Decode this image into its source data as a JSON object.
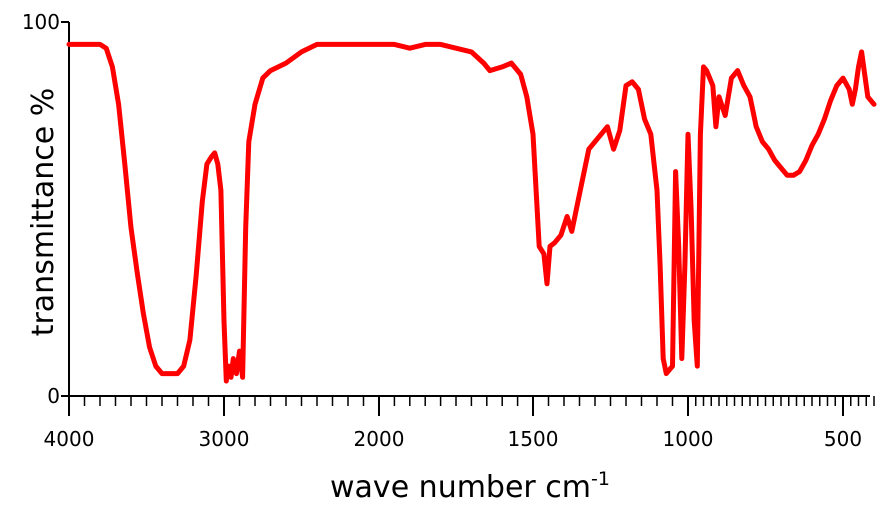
{
  "chart_data": {
    "type": "line",
    "title": "",
    "xlabel": "wave number cm",
    "xlabel_sup": "-1",
    "ylabel": "transmittance %",
    "xlim": [
      4000,
      400
    ],
    "ylim": [
      0,
      100
    ],
    "x_reversed": true,
    "grid": false,
    "legend": "none",
    "x_ticks": [
      4000,
      3000,
      2000,
      1500,
      1000,
      500
    ],
    "x_tick_labels": [
      "4000",
      "3000",
      "2000",
      "1500",
      "1000",
      "500"
    ],
    "y_ticks": [
      0,
      100
    ],
    "y_tick_labels": [
      "0",
      "100"
    ],
    "series": [
      {
        "color": "#ff0000",
        "points": [
          [
            4000,
            94
          ],
          [
            3900,
            94
          ],
          [
            3800,
            94
          ],
          [
            3760,
            93
          ],
          [
            3720,
            88
          ],
          [
            3680,
            78
          ],
          [
            3640,
            62
          ],
          [
            3600,
            45
          ],
          [
            3560,
            33
          ],
          [
            3520,
            22
          ],
          [
            3480,
            13
          ],
          [
            3440,
            8
          ],
          [
            3400,
            6
          ],
          [
            3350,
            6
          ],
          [
            3300,
            6
          ],
          [
            3260,
            8
          ],
          [
            3220,
            15
          ],
          [
            3180,
            32
          ],
          [
            3140,
            52
          ],
          [
            3110,
            62
          ],
          [
            3080,
            64
          ],
          [
            3060,
            65
          ],
          [
            3040,
            62
          ],
          [
            3020,
            55
          ],
          [
            3000,
            20
          ],
          [
            2985,
            4
          ],
          [
            2970,
            8
          ],
          [
            2955,
            5
          ],
          [
            2940,
            10
          ],
          [
            2920,
            6
          ],
          [
            2900,
            12
          ],
          [
            2880,
            5
          ],
          [
            2860,
            45
          ],
          [
            2840,
            68
          ],
          [
            2800,
            78
          ],
          [
            2750,
            85
          ],
          [
            2700,
            87
          ],
          [
            2600,
            89
          ],
          [
            2500,
            92
          ],
          [
            2400,
            94
          ],
          [
            2300,
            94
          ],
          [
            2200,
            94
          ],
          [
            2100,
            94
          ],
          [
            2000,
            94
          ],
          [
            1950,
            94
          ],
          [
            1900,
            93
          ],
          [
            1850,
            94
          ],
          [
            1800,
            94
          ],
          [
            1750,
            93
          ],
          [
            1700,
            92
          ],
          [
            1660,
            89
          ],
          [
            1640,
            87
          ],
          [
            1600,
            88
          ],
          [
            1570,
            89
          ],
          [
            1540,
            86
          ],
          [
            1520,
            80
          ],
          [
            1500,
            70
          ],
          [
            1480,
            40
          ],
          [
            1465,
            38
          ],
          [
            1455,
            30
          ],
          [
            1445,
            40
          ],
          [
            1430,
            41
          ],
          [
            1410,
            43
          ],
          [
            1390,
            48
          ],
          [
            1375,
            44
          ],
          [
            1360,
            50
          ],
          [
            1340,
            58
          ],
          [
            1320,
            66
          ],
          [
            1300,
            68
          ],
          [
            1280,
            70
          ],
          [
            1260,
            72
          ],
          [
            1240,
            66
          ],
          [
            1220,
            71
          ],
          [
            1200,
            83
          ],
          [
            1180,
            84
          ],
          [
            1160,
            82
          ],
          [
            1140,
            74
          ],
          [
            1120,
            70
          ],
          [
            1100,
            55
          ],
          [
            1090,
            35
          ],
          [
            1080,
            10
          ],
          [
            1070,
            6
          ],
          [
            1060,
            7
          ],
          [
            1050,
            8
          ],
          [
            1040,
            60
          ],
          [
            1030,
            40
          ],
          [
            1020,
            10
          ],
          [
            1010,
            35
          ],
          [
            1000,
            70
          ],
          [
            990,
            50
          ],
          [
            980,
            20
          ],
          [
            970,
            8
          ],
          [
            960,
            70
          ],
          [
            950,
            88
          ],
          [
            940,
            87
          ],
          [
            920,
            83
          ],
          [
            910,
            72
          ],
          [
            900,
            80
          ],
          [
            880,
            75
          ],
          [
            860,
            85
          ],
          [
            840,
            87
          ],
          [
            820,
            83
          ],
          [
            800,
            80
          ],
          [
            780,
            72
          ],
          [
            760,
            68
          ],
          [
            740,
            66
          ],
          [
            720,
            63
          ],
          [
            700,
            61
          ],
          [
            680,
            59
          ],
          [
            660,
            59
          ],
          [
            640,
            60
          ],
          [
            620,
            63
          ],
          [
            600,
            67
          ],
          [
            580,
            70
          ],
          [
            560,
            74
          ],
          [
            540,
            79
          ],
          [
            520,
            83
          ],
          [
            500,
            85
          ],
          [
            480,
            82
          ],
          [
            470,
            78
          ],
          [
            460,
            82
          ],
          [
            450,
            88
          ],
          [
            440,
            92
          ],
          [
            430,
            86
          ],
          [
            420,
            80
          ],
          [
            400,
            78
          ]
        ]
      }
    ]
  }
}
